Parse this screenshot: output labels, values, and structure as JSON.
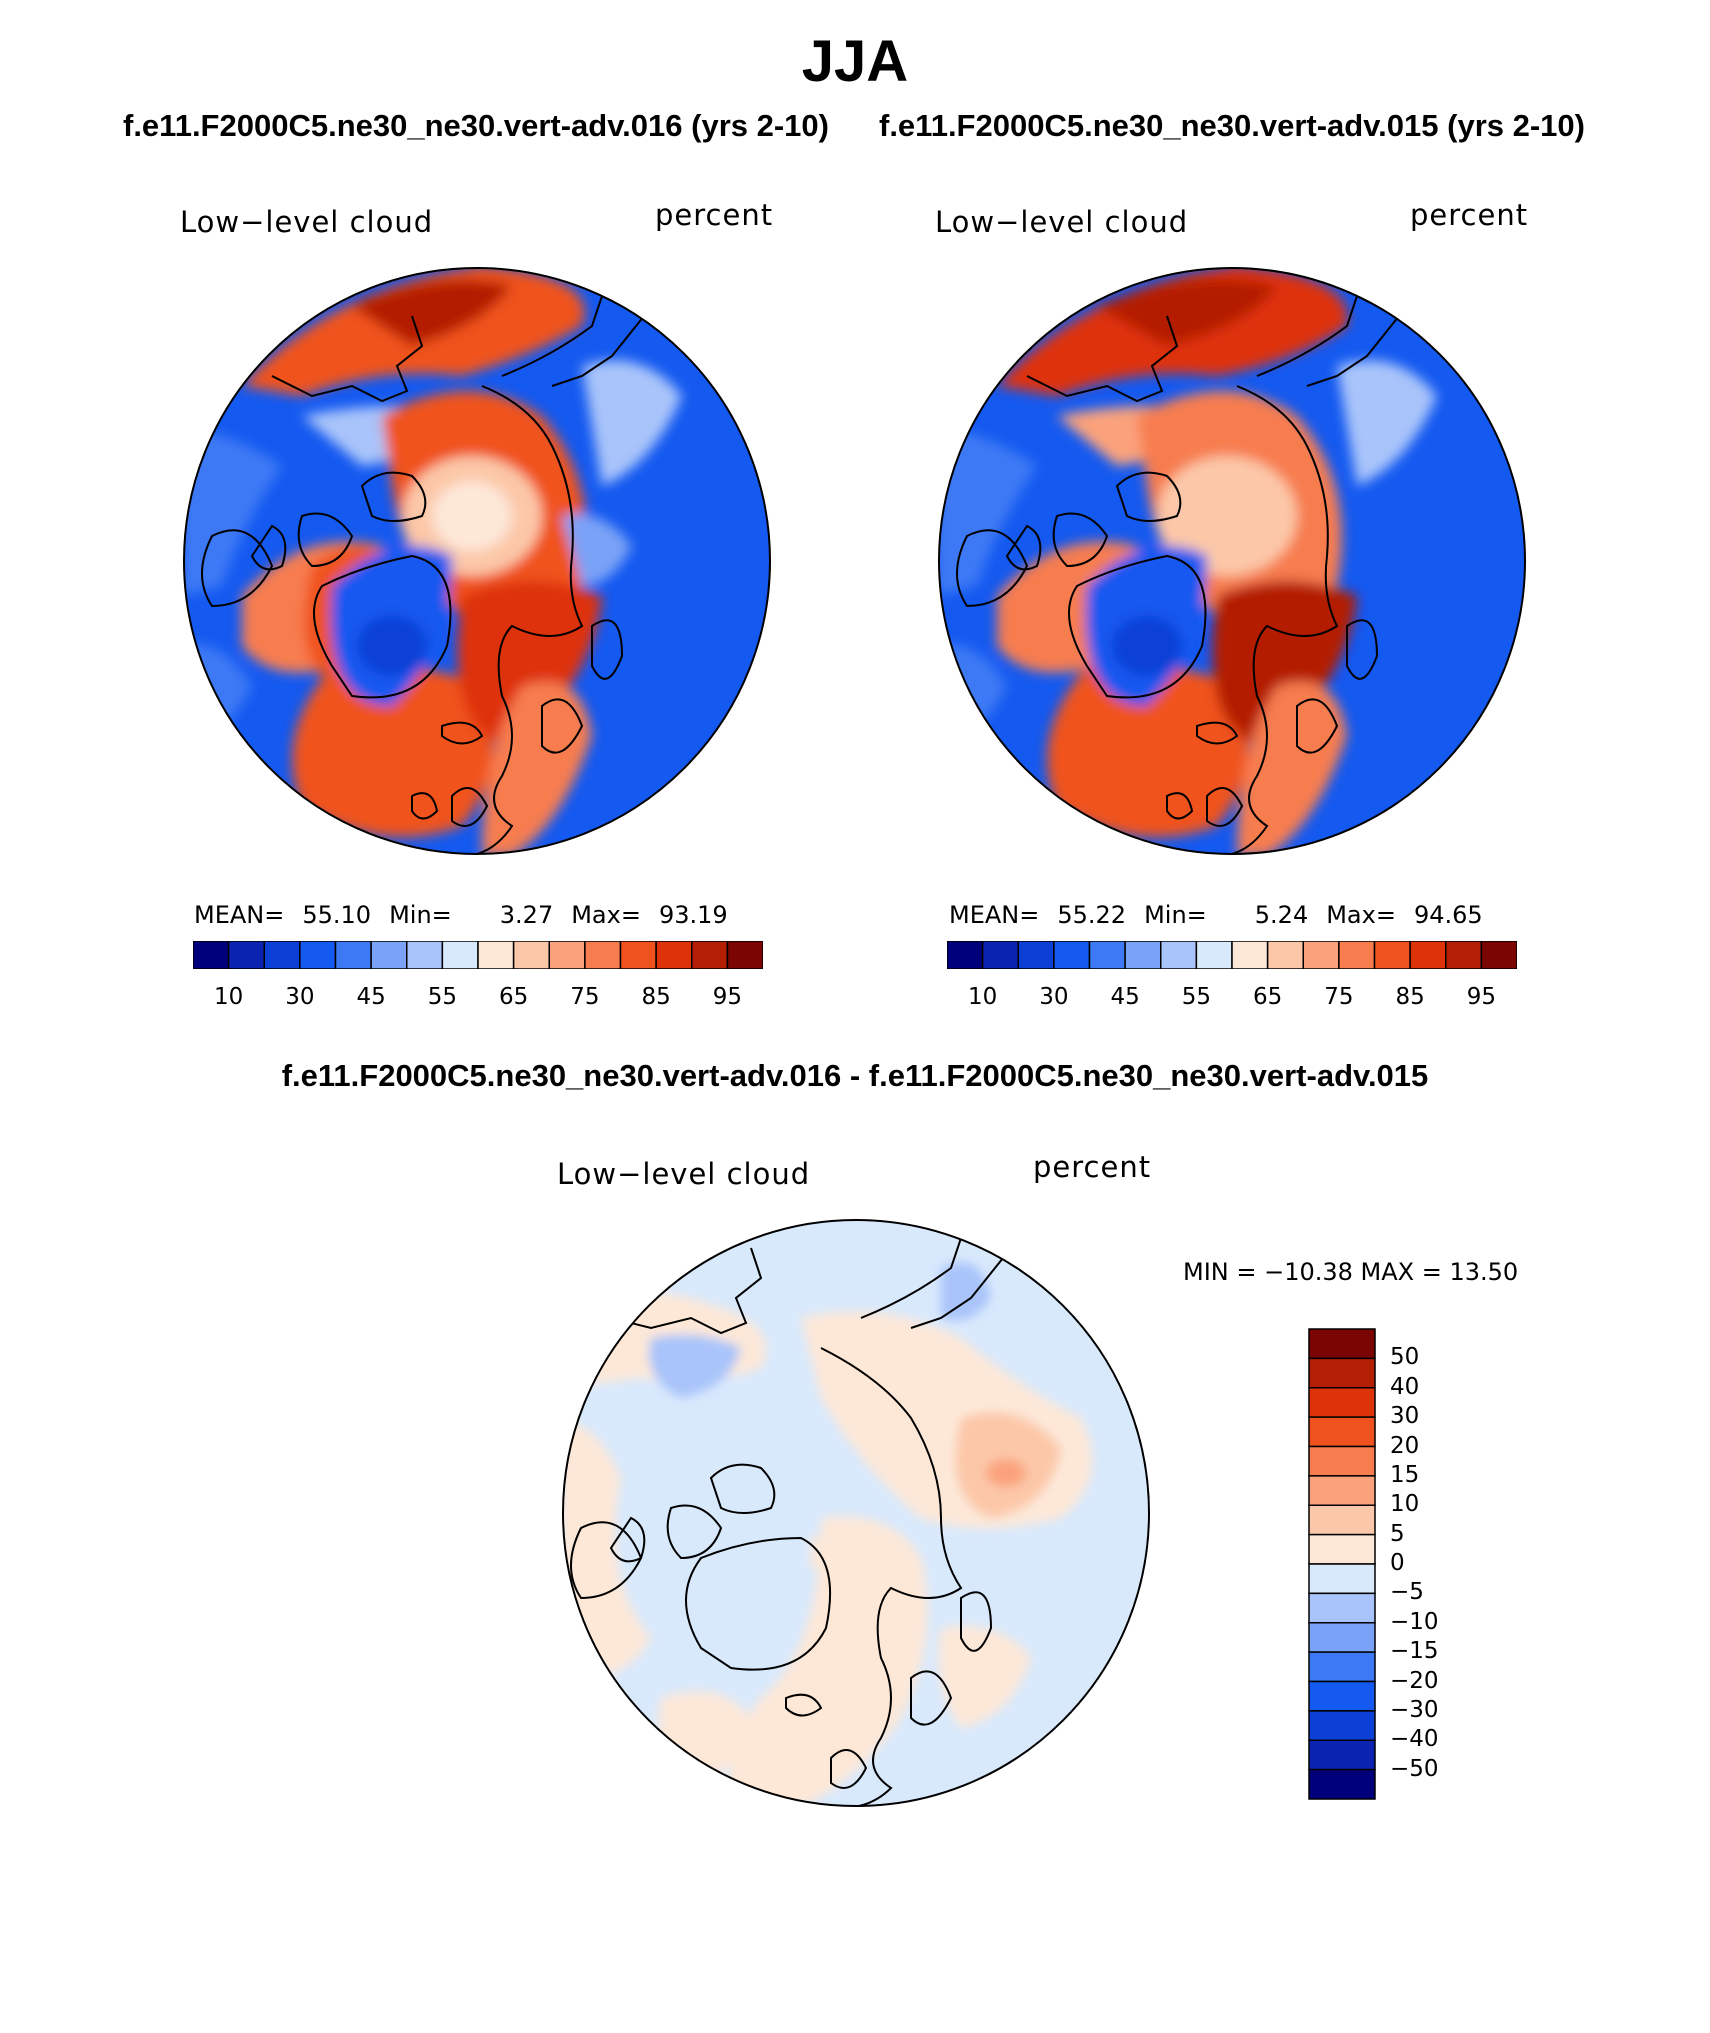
{
  "page": {
    "title": "JJA",
    "left_subtitle": "f.e11.F2000C5.ne30_ne30.vert-adv.016 (yrs 2-10)",
    "right_subtitle": "f.e11.F2000C5.ne30_ne30.vert-adv.015 (yrs 2-10)",
    "diff_title": "f.e11.F2000C5.ne30_ne30.vert-adv.016 - f.e11.F2000C5.ne30_ne30.vert-adv.015"
  },
  "panels": [
    {
      "variable": "Low−level cloud",
      "units": "percent",
      "mean_label": "MEAN=",
      "mean": "55.10",
      "min_label": "Min=",
      "min": "3.27",
      "max_label": "Max=",
      "max": "93.19"
    },
    {
      "variable": "Low−level cloud",
      "units": "percent",
      "mean_label": "MEAN=",
      "mean": "55.22",
      "min_label": "Min=",
      "min": "5.24",
      "max_label": "Max=",
      "max": "94.65"
    }
  ],
  "diff_panel": {
    "variable": "Low−level cloud",
    "units": "percent",
    "minmax": "MIN = −10.38 MAX =   13.50"
  },
  "colorbar_main": {
    "colors": [
      "#00007a",
      "#0a23b0",
      "#0b3fd6",
      "#1459f0",
      "#3d79f5",
      "#7aa2f7",
      "#a9c4fa",
      "#d9e9fc",
      "#fde8d8",
      "#fcc7a8",
      "#fba27c",
      "#f77d4f",
      "#f0521f",
      "#de3309",
      "#b41e04",
      "#7b0502"
    ],
    "ticks": [
      "10",
      "30",
      "45",
      "55",
      "65",
      "75",
      "85",
      "95"
    ]
  },
  "colorbar_diff": {
    "colors": [
      "#7b0502",
      "#b41e04",
      "#de3309",
      "#f0521f",
      "#f77d4f",
      "#fba27c",
      "#fcc7a8",
      "#fde8d8",
      "#d9e9fc",
      "#a9c4fa",
      "#7aa2f7",
      "#3d79f5",
      "#1459f0",
      "#0b3fd6",
      "#0a23b0",
      "#00007a"
    ],
    "ticks": [
      "50",
      "40",
      "30",
      "20",
      "15",
      "10",
      "5",
      "0",
      "−5",
      "−10",
      "−15",
      "−20",
      "−30",
      "−40",
      "−50"
    ]
  }
}
